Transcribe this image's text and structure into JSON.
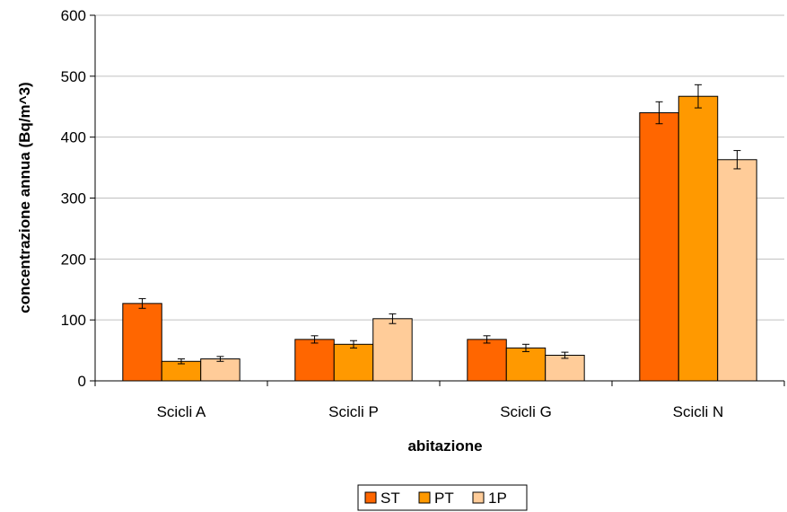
{
  "chart_data": {
    "type": "bar",
    "title": "",
    "xlabel": "abitazione",
    "ylabel": "concentrazione annua (Bq/m^3)",
    "ylim": [
      0,
      600
    ],
    "yticks": [
      0,
      100,
      200,
      300,
      400,
      500,
      600
    ],
    "categories": [
      "Scicli A",
      "Scicli P",
      "Scicli G",
      "Scicli N"
    ],
    "series": [
      {
        "name": "ST",
        "values": [
          127,
          68,
          68,
          440
        ],
        "errors": [
          8,
          6,
          6,
          18
        ],
        "color": "#ff6600"
      },
      {
        "name": "PT",
        "values": [
          32,
          60,
          54,
          467
        ],
        "errors": [
          4,
          6,
          6,
          19
        ],
        "color": "#ff9900"
      },
      {
        "name": "1P",
        "values": [
          36,
          102,
          42,
          363
        ],
        "errors": [
          4,
          8,
          5,
          15
        ],
        "color": "#ffcc99"
      }
    ],
    "grid": true,
    "legend_position": "bottom",
    "error_bars": true
  }
}
